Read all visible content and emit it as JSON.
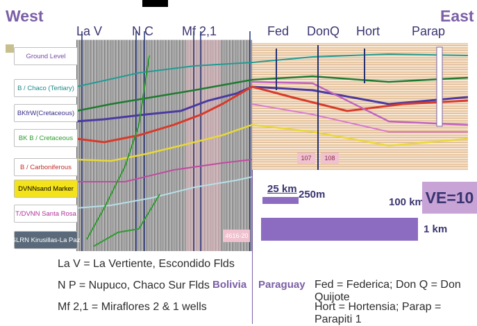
{
  "directions": {
    "west": "West",
    "east": "East"
  },
  "wells_left": [
    "La V",
    "N C",
    "Mf 2,1"
  ],
  "wells_right": [
    "Fed",
    "DonQ",
    "Hort",
    "Parap"
  ],
  "horizon_labels": [
    {
      "text": "Ground Level",
      "color": "#7a4aa0"
    },
    {
      "text": "B / Chaco (Tertiary)",
      "color": "#1f8a86"
    },
    {
      "text": "BKfrW(Cretaceous)",
      "color": "#3a2f8a"
    },
    {
      "text": "BK  B / Cretaceous",
      "color": "#2e9b2e"
    },
    {
      "text": "B / Carboniferous",
      "color": "#c0302a"
    },
    {
      "text": "DVNNsand Marker",
      "color": "#000000",
      "bg": "#f4e21a"
    },
    {
      "text": "T/DVNN Santa Rosa",
      "color": "#b0309a"
    },
    {
      "text": "SLRN Kirusillas-La Paz",
      "color": "#ffffff",
      "bg": "#5a6a7a"
    }
  ],
  "line_ids": {
    "left": "4616-20",
    "right_a": "107",
    "right_b": "108"
  },
  "scale": {
    "h_label": "25 km",
    "v_label": "250m",
    "h_label2": "100 km",
    "v_label2": "1 km",
    "ve": "VE=10"
  },
  "countries": {
    "left": "Bolivia",
    "right": "Paraguay"
  },
  "legend_left": [
    "La V = La Vertiente, Escondido Flds",
    "N P = Nupuco, Chaco Sur Flds",
    "Mf 2,1 = Miraflores 2 & 1 wells"
  ],
  "legend_right": [
    "Fed = Federica; Don Q = Don Quijote",
    "Hort = Hortensia;  Parap = Parapiti 1"
  ],
  "colors": {
    "accent": "#7b5fa6",
    "ve_box": "#c7a3d6",
    "bar": "#8b6cc0"
  }
}
